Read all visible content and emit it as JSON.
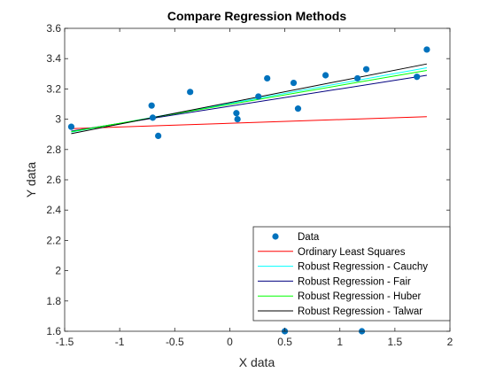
{
  "chart_data": {
    "type": "scatter",
    "title": "Compare Regression Methods",
    "xlabel": "X data",
    "ylabel": "Y data",
    "xlim": [
      -1.5,
      2
    ],
    "ylim": [
      1.6,
      3.6
    ],
    "xticks": [
      "-1.5",
      "-1",
      "-0.5",
      "0",
      "0.5",
      "1",
      "1.5",
      "2"
    ],
    "yticks": [
      "1.6",
      "1.8",
      "2",
      "2.2",
      "2.4",
      "2.6",
      "2.8",
      "3",
      "3.2",
      "3.4",
      "3.6"
    ],
    "grid": false,
    "legend_position": "bottom-right",
    "points": {
      "name": "Data",
      "color": "#0072BD",
      "x": [
        -1.44,
        -0.71,
        -0.7,
        -0.65,
        -0.36,
        0.06,
        0.07,
        0.26,
        0.34,
        0.5,
        0.58,
        0.62,
        0.87,
        1.16,
        1.2,
        1.24,
        1.7,
        1.79
      ],
      "y": [
        2.95,
        3.09,
        3.01,
        2.89,
        3.18,
        3.04,
        3.0,
        3.15,
        3.27,
        1.6,
        3.24,
        3.07,
        3.29,
        3.27,
        1.6,
        3.33,
        3.28,
        3.46
      ]
    },
    "series": [
      {
        "name": "Ordinary Least Squares",
        "color": "#FF0000",
        "x": [
          -1.44,
          1.79
        ],
        "y": [
          2.938,
          3.017
        ]
      },
      {
        "name": "Robust Regression - Cauchy",
        "color": "#00FFFF",
        "x": [
          -1.44,
          1.79
        ],
        "y": [
          2.915,
          3.34
        ]
      },
      {
        "name": "Robust Regression - Fair",
        "color": "#00007F",
        "x": [
          -1.44,
          1.79
        ],
        "y": [
          2.922,
          3.29
        ]
      },
      {
        "name": "Robust Regression - Huber",
        "color": "#00FF00",
        "x": [
          -1.44,
          1.79
        ],
        "y": [
          2.918,
          3.322
        ]
      },
      {
        "name": "Robust Regression - Talwar",
        "color": "#000000",
        "x": [
          -1.44,
          1.79
        ],
        "y": [
          2.905,
          3.365
        ]
      }
    ]
  }
}
